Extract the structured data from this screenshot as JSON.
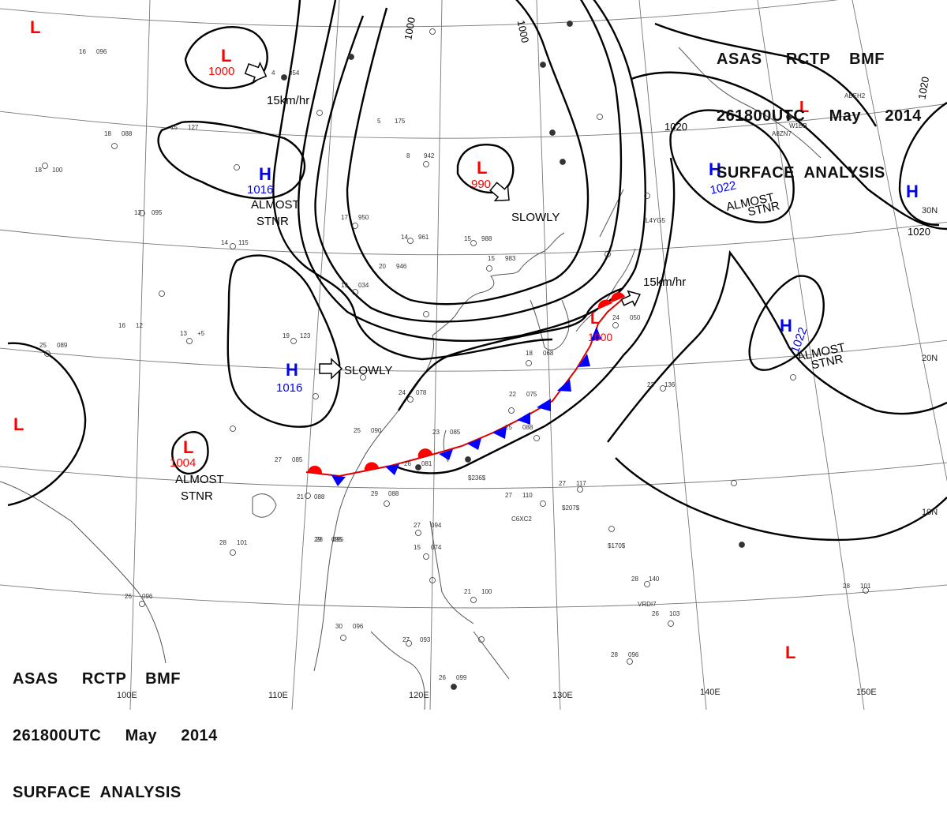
{
  "header": {
    "line1": "ASAS     RCTP    BMF",
    "line2": "261800UTC     May     2014",
    "line3": "SURFACE  ANALYSIS"
  },
  "footer": {
    "line1": "ASAS     RCTP    BMF",
    "line2": "261800UTC     May     2014",
    "line3": "SURFACE  ANALYSIS"
  },
  "colors": {
    "low": "#ff0000",
    "high": "#0000ff",
    "isobar": "#000000",
    "coast": "#555555",
    "grid": "#777777"
  },
  "longitude_labels": [
    "100E",
    "110E",
    "120E",
    "130E",
    "140E",
    "150E"
  ],
  "latitude_labels": [
    "30N",
    "20N",
    "10N"
  ],
  "isobar_labels": [
    "1000",
    "1000",
    "1020",
    "1020",
    "1020"
  ],
  "pressure_systems": [
    {
      "type": "L",
      "value": "1000",
      "motion": "15km/hr"
    },
    {
      "type": "L",
      "value": "990",
      "motion": "SLOWLY"
    },
    {
      "type": "L",
      "value": "1004",
      "motion": "ALMOST STNR"
    },
    {
      "type": "L",
      "value": "",
      "motion": ""
    },
    {
      "type": "L",
      "value": "",
      "motion": ""
    },
    {
      "type": "L",
      "value": "",
      "motion": ""
    },
    {
      "type": "L",
      "value": "1000",
      "motion": "15km/hr"
    },
    {
      "type": "H",
      "value": "1016",
      "motion": "ALMOST STNR"
    },
    {
      "type": "H",
      "value": "1016",
      "motion": "SLOWLY"
    },
    {
      "type": "H",
      "value": "1022",
      "motion": "ALMOST STNR"
    },
    {
      "type": "H",
      "value": "1022",
      "motion": "ALMOST STNR"
    },
    {
      "type": "H",
      "value": "",
      "motion": ""
    }
  ],
  "station_reports": [
    {
      "t": "16",
      "p": "096"
    },
    {
      "t": "18",
      "p": "088"
    },
    {
      "t": "18",
      "p": "100"
    },
    {
      "t": "15",
      "p": "127"
    },
    {
      "t": "13",
      "p": "095"
    },
    {
      "t": "14",
      "p": "115"
    },
    {
      "t": "16",
      "p": "12"
    },
    {
      "t": "25",
      "p": "089"
    },
    {
      "t": "13",
      "p": "+5"
    },
    {
      "t": "19",
      "p": "123"
    },
    {
      "t": "27",
      "p": "085"
    },
    {
      "t": "21",
      "p": "088"
    },
    {
      "t": "28",
      "p": "101"
    },
    {
      "t": "28",
      "p": "095"
    },
    {
      "t": "26",
      "p": "096"
    },
    {
      "t": "30",
      "p": "096"
    },
    {
      "t": "27",
      "p": "093"
    },
    {
      "t": "26",
      "p": "099"
    },
    {
      "t": "29",
      "p": "088"
    },
    {
      "t": "25",
      "p": "090"
    },
    {
      "t": "24",
      "p": "078"
    },
    {
      "t": "26",
      "p": "081"
    },
    {
      "t": "23",
      "p": "085"
    },
    {
      "t": "22",
      "p": "075"
    },
    {
      "t": "25",
      "p": "088"
    },
    {
      "t": "27",
      "p": "110"
    },
    {
      "t": "27",
      "p": "117"
    },
    {
      "t": "28",
      "p": "140"
    },
    {
      "t": "26",
      "p": "103"
    },
    {
      "t": "28",
      "p": "096"
    },
    {
      "t": "28",
      "p": "101"
    },
    {
      "t": "23",
      "p": "136"
    },
    {
      "t": "24",
      "p": "050"
    },
    {
      "t": "17",
      "p": "950"
    },
    {
      "t": "14",
      "p": "961"
    },
    {
      "t": "15",
      "p": "988"
    },
    {
      "t": "20",
      "p": "946"
    },
    {
      "t": "19",
      "p": "034"
    },
    {
      "t": "8",
      "p": "942"
    },
    {
      "t": "4",
      "p": "054"
    },
    {
      "t": "5",
      "p": "175"
    },
    {
      "t": "15",
      "p": "983"
    },
    {
      "t": "18",
      "p": "068"
    },
    {
      "t": "27",
      "p": "094"
    },
    {
      "t": "15",
      "p": "074"
    },
    {
      "t": "21",
      "p": "100"
    },
    {
      "t": "29",
      "p": "095"
    }
  ],
  "station_ids": [
    "$236$",
    "C6XC2",
    "$207$",
    "$170$",
    "VRDI7",
    "L4YG5",
    "ABEH2",
    "A8ZN7",
    "W1BB"
  ]
}
